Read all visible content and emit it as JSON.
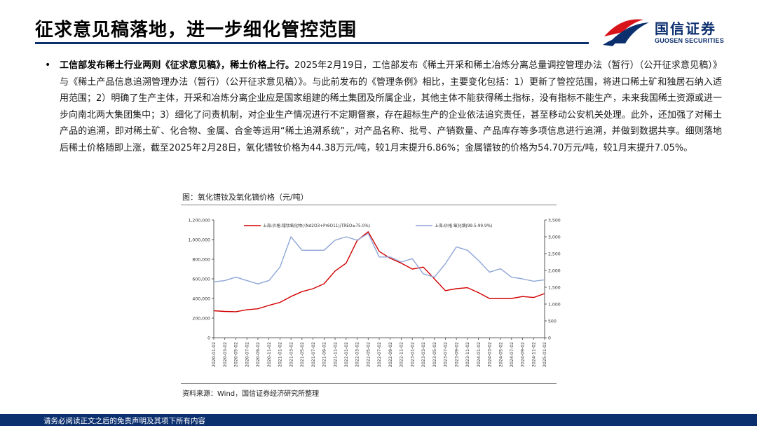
{
  "header": {
    "title": "征求意见稿落地，进一步细化管控范围",
    "logo_cn": "国信证券",
    "logo_en": "GUOSEN SECURITIES"
  },
  "body": {
    "bullet": "•",
    "lead": "工信部发布稀土行业两则《征求意见稿》，稀土价格上行。",
    "text": "2025年2月19日，工信部发布《稀土开采和稀土冶炼分离总量调控管理办法（暂行）（公开征求意见稿）》与《稀土产品信息追溯管理办法（暂行）（公开征求意见稿）》。与此前发布的《管理条例》相比，主要变化包括：1）更新了管控范围，将进口稀土矿和独居石纳入适用范围；2）明确了生产主体，开采和冶炼分离企业应是国家组建的稀土集团及所属企业，其他主体不能获得稀土指标，没有指标不能生产，未来我国稀土资源或进一步向南北两大集团集中；3）细化了问责机制，对企业生产情况进行不定期督察，存在超标生产的企业依法追究责任，甚至移动公安机关处理。此外，还加强了对稀土产品的追溯，即对稀土矿、化合物、金属、合金等运用“稀土追溯系统”，对产品名称、批号、产销数量、产品库存等多项信息进行追溯，并做到数据共享。细则落地后稀土价格随即上涨，截至2025年2月28日，氧化镨钕价格为44.38万元/吨，较1月末提升6.86%；金属镨钕的价格为54.70万元/吨，较1月末提升7.05%。"
  },
  "chart_caption": "图：氧化镨钕及氧化镝价格（元/吨）",
  "source": "资料来源：Wind，国信证券经济研究所整理",
  "footer": "请务必阅读正文之后的免责声明及其项下所有内容",
  "colors": {
    "navy": "#0c2f6e",
    "brand_red": "#d7141a",
    "series_red": "#d20000",
    "series_blue": "#8fa6d6"
  },
  "chart_data": {
    "type": "line",
    "x_labels": [
      "2020-01-02",
      "2020-03-02",
      "2020-05-02",
      "2020-07-02",
      "2020-09-02",
      "2020-11-02",
      "2021-01-02",
      "2021-03-02",
      "2021-05-02",
      "2021-07-02",
      "2021-09-02",
      "2021-11-02",
      "2022-01-02",
      "2022-03-02",
      "2022-05-02",
      "2022-07-02",
      "2022-09-02",
      "2022-11-02",
      "2023-01-02",
      "2023-03-02",
      "2023-05-02",
      "2023-07-02",
      "2023-09-02",
      "2023-11-02",
      "2024-01-02",
      "2024-03-02",
      "2024-05-02",
      "2024-07-02",
      "2024-09-02",
      "2024-11-02",
      "2025-01-02"
    ],
    "y_left": {
      "ticks": [
        "0",
        "200,000",
        "400,000",
        "600,000",
        "800,000",
        "1,000,000",
        "1,200,000"
      ],
      "min": 0,
      "max": 1200000
    },
    "y_right": {
      "ticks": [
        "0",
        "500",
        "1,000",
        "1,500",
        "2,000",
        "2,500",
        "3,000",
        "3,500"
      ],
      "min": 0,
      "max": 3500
    },
    "grid": false,
    "legend": "top",
    "series": [
      {
        "name": "上海:价格:镨钕氧化物(（Nd2O3+Pr6O11)/TREO≥75.0%)",
        "axis": "left",
        "color": "#d20000",
        "values": [
          275000,
          268000,
          265000,
          285000,
          295000,
          330000,
          360000,
          420000,
          470000,
          500000,
          550000,
          680000,
          760000,
          990000,
          1080000,
          880000,
          810000,
          760000,
          700000,
          720000,
          600000,
          480000,
          500000,
          510000,
          460000,
          400000,
          400000,
          400000,
          420000,
          410000,
          450000
        ]
      },
      {
        "name": "上海:价格:氧化镝(99.5-99.9%)",
        "axis": "right",
        "color": "#8fa6d6",
        "values": [
          1660,
          1700,
          1800,
          1700,
          1600,
          1700,
          2100,
          3000,
          2600,
          2600,
          2600,
          2900,
          3000,
          2900,
          3100,
          2400,
          2400,
          2250,
          2350,
          1900,
          1800,
          2200,
          2700,
          2600,
          2300,
          1950,
          2050,
          1800,
          1750,
          1680,
          1720
        ]
      }
    ]
  }
}
